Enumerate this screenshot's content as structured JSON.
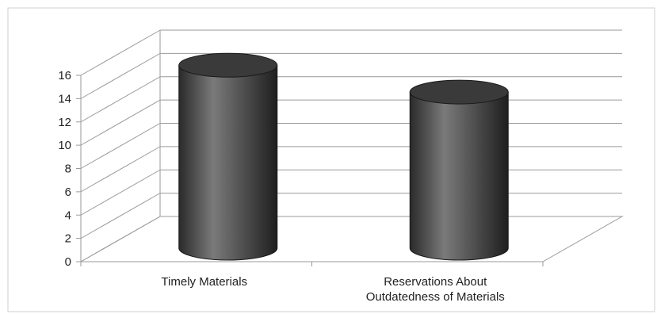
{
  "chart_data": {
    "type": "bar",
    "style": "3d-cylinder",
    "categories": [
      "Timely Materials",
      "Reservations About Outdatedness  of Materials"
    ],
    "category_lines": [
      [
        "Timely Materials"
      ],
      [
        "Reservations About",
        "Outdatedness  of Materials"
      ]
    ],
    "values": [
      15.3,
      13.0
    ],
    "ylim": [
      0,
      16
    ],
    "yticks": [
      0,
      2,
      4,
      6,
      8,
      10,
      12,
      14,
      16
    ],
    "grid": true,
    "legend": "none",
    "bar_color": "#4a4a4a"
  }
}
